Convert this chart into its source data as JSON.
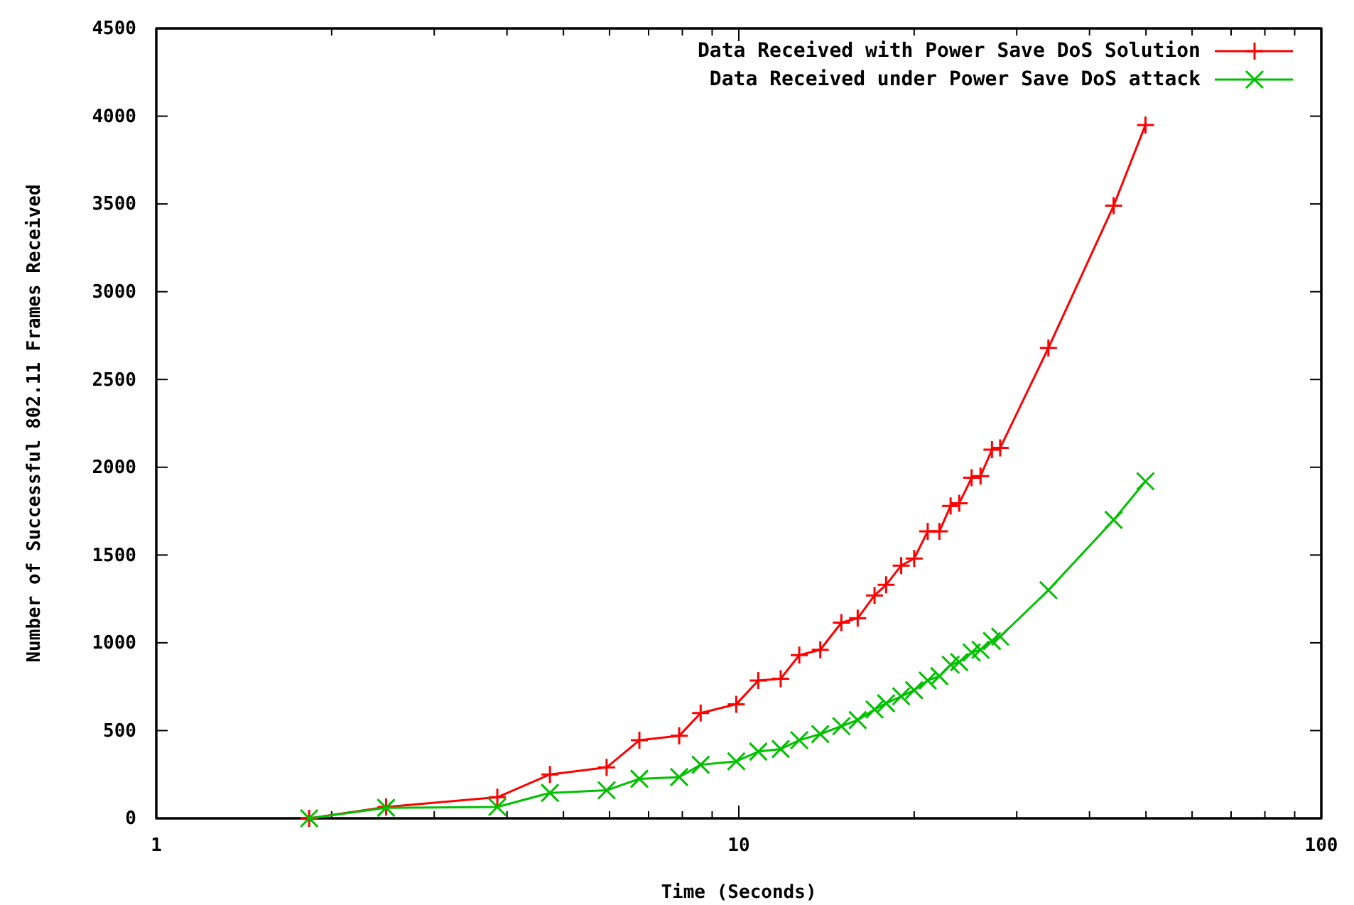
{
  "chart_data": {
    "type": "line",
    "xlabel": "Time (Seconds)",
    "ylabel": "Number of Successful 802.11 Frames Received",
    "log": "x",
    "xlim": [
      1,
      100
    ],
    "ylim": [
      0,
      4500
    ],
    "xticks": [
      1,
      {
        "value": 2,
        "label": null
      },
      {
        "value": 3,
        "label": null
      },
      {
        "value": 4,
        "label": null
      },
      {
        "value": 5,
        "label": null
      },
      {
        "value": 6,
        "label": null
      },
      {
        "value": 7,
        "label": null
      },
      {
        "value": 8,
        "label": null
      },
      {
        "value": 9,
        "label": null
      },
      10,
      {
        "value": 20,
        "label": null
      },
      {
        "value": 30,
        "label": null
      },
      {
        "value": 40,
        "label": null
      },
      {
        "value": 50,
        "label": null
      },
      {
        "value": 60,
        "label": null
      },
      {
        "value": 70,
        "label": null
      },
      {
        "value": 80,
        "label": null
      },
      {
        "value": 90,
        "label": null
      },
      100
    ],
    "yticks": [
      0,
      500,
      1000,
      1500,
      2000,
      2500,
      3000,
      3500,
      4000,
      4500
    ],
    "grid": false,
    "legend": "top right",
    "x": [
      1.83,
      2.48,
      3.85,
      4.74,
      5.93,
      6.75,
      7.9,
      8.6,
      9.9,
      10.8,
      11.8,
      12.7,
      13.8,
      15.0,
      16.0,
      17.1,
      17.9,
      19.0,
      20.0,
      21.1,
      22.1,
      23.1,
      23.9,
      25.1,
      26.0,
      27.2,
      28.1,
      34.0,
      44.0,
      49.9
    ],
    "series": [
      {
        "name": "Data Received with Power Save DoS Solution",
        "color": "#ff0000",
        "marker": "plus",
        "values": [
          0,
          65,
          120,
          250,
          290,
          445,
          470,
          600,
          650,
          785,
          795,
          930,
          960,
          1115,
          1140,
          1270,
          1330,
          1440,
          1480,
          1635,
          1635,
          1780,
          1795,
          1940,
          1950,
          2100,
          2110,
          2680,
          3490,
          3950
        ]
      },
      {
        "name": "Data Received under Power Save DoS attack",
        "color": "#00c000",
        "marker": "cross",
        "values": [
          0,
          60,
          65,
          145,
          160,
          225,
          235,
          305,
          325,
          380,
          395,
          445,
          480,
          525,
          560,
          620,
          655,
          695,
          730,
          785,
          810,
          875,
          890,
          945,
          960,
          1010,
          1035,
          1300,
          1700,
          1920
        ]
      }
    ]
  }
}
